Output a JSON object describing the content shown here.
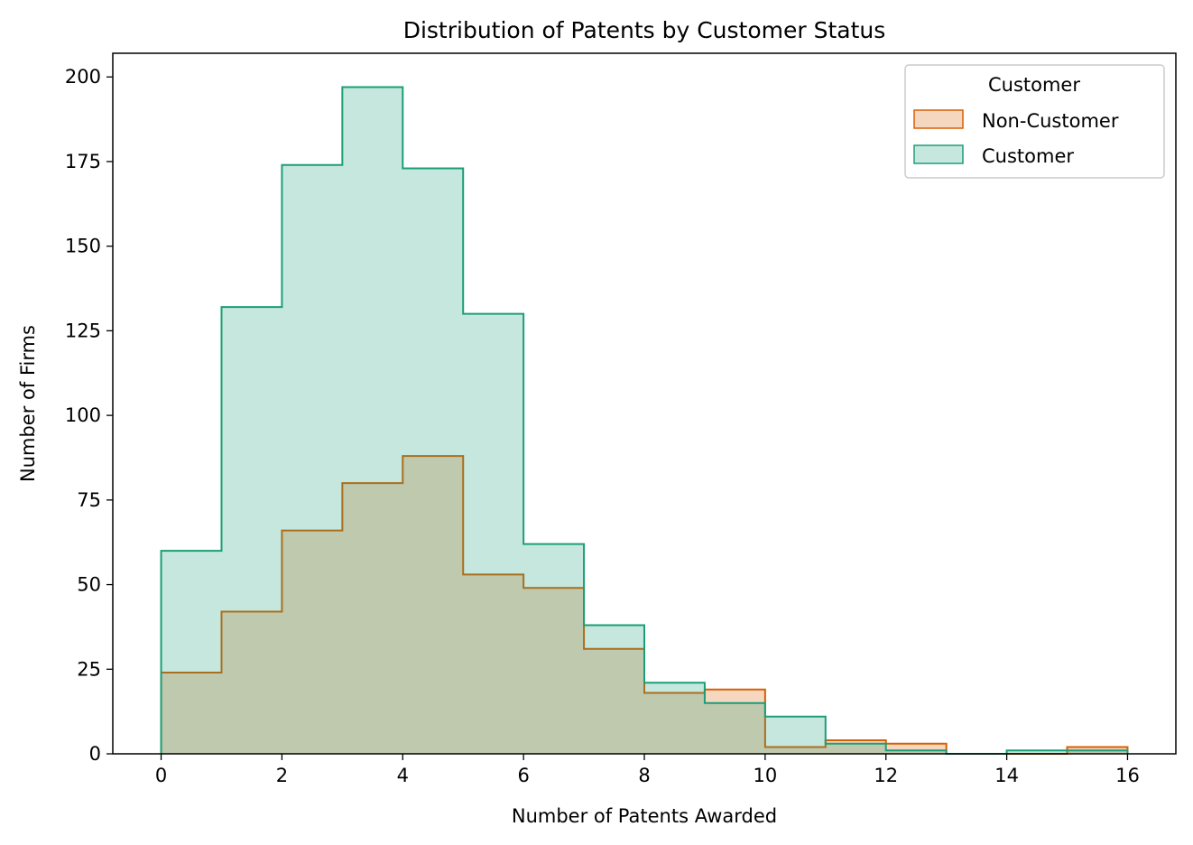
{
  "chart_data": {
    "type": "histogram",
    "title": "Distribution of Patents by Customer Status",
    "xlabel": "Number of Patents Awarded",
    "ylabel": "Number of Firms",
    "xlim": [
      -0.8,
      16.8
    ],
    "ylim": [
      0,
      207
    ],
    "xticks": [
      0,
      2,
      4,
      6,
      8,
      10,
      12,
      14,
      16
    ],
    "yticks": [
      0,
      25,
      50,
      75,
      100,
      125,
      150,
      175,
      200
    ],
    "bin_edges": [
      0,
      1,
      2,
      3,
      4,
      5,
      6,
      7,
      8,
      9,
      10,
      11,
      12,
      13,
      14,
      15,
      16
    ],
    "grid": false,
    "legend": {
      "title": "Customer",
      "placement": "top-right"
    },
    "series": [
      {
        "name": "Non-Customer",
        "color": "#d95f02",
        "values": [
          24,
          42,
          66,
          80,
          88,
          53,
          49,
          31,
          18,
          19,
          2,
          4,
          3,
          0,
          0,
          2
        ]
      },
      {
        "name": "Customer",
        "color": "#1b9e77",
        "values": [
          60,
          132,
          174,
          197,
          173,
          130,
          62,
          38,
          21,
          15,
          11,
          3,
          1,
          0,
          1,
          1
        ]
      }
    ]
  }
}
